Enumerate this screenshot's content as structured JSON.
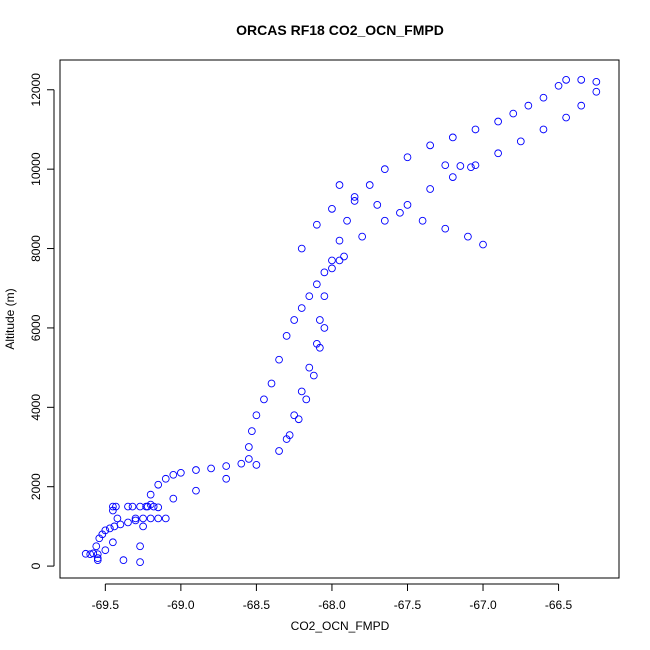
{
  "chart_data": {
    "type": "scatter",
    "title": "ORCAS RF18 CO2_OCN_FMPD",
    "xlabel": "CO2_OCN_FMPD",
    "ylabel": "Altitude (m)",
    "xlim": [
      -69.8,
      -66.1
    ],
    "ylim": [
      -300,
      12750
    ],
    "x_ticks": [
      -69.5,
      -69.0,
      -68.5,
      -68.0,
      -67.5,
      -67.0,
      -66.5
    ],
    "x_tick_labels": [
      "-69.5",
      "-69.0",
      "-68.5",
      "-68.0",
      "-67.5",
      "-67.0",
      "-66.5"
    ],
    "y_ticks": [
      0,
      2000,
      4000,
      6000,
      8000,
      10000,
      12000
    ],
    "y_tick_labels": [
      "0",
      "2000",
      "4000",
      "6000",
      "8000",
      "10000",
      "12000"
    ],
    "marker": "open-circle",
    "color": "#0000ff",
    "grid": false,
    "legend": "none",
    "series": [
      {
        "points": [
          [
            -69.63,
            310
          ],
          [
            -69.6,
            300
          ],
          [
            -69.58,
            320
          ],
          [
            -69.56,
            500
          ],
          [
            -69.54,
            700
          ],
          [
            -69.52,
            800
          ],
          [
            -69.5,
            900
          ],
          [
            -69.47,
            950
          ],
          [
            -69.44,
            1000
          ],
          [
            -69.4,
            1050
          ],
          [
            -69.35,
            1100
          ],
          [
            -69.3,
            1150
          ],
          [
            -69.25,
            1200
          ],
          [
            -69.2,
            1200
          ],
          [
            -69.15,
            1200
          ],
          [
            -69.1,
            1200
          ],
          [
            -69.27,
            1500
          ],
          [
            -69.22,
            1500
          ],
          [
            -69.18,
            1500
          ],
          [
            -69.15,
            1480
          ],
          [
            -69.55,
            300
          ],
          [
            -69.55,
            200
          ],
          [
            -69.55,
            150
          ],
          [
            -69.5,
            400
          ],
          [
            -69.45,
            600
          ],
          [
            -69.45,
            1400
          ],
          [
            -69.45,
            1500
          ],
          [
            -69.43,
            1500
          ],
          [
            -69.42,
            1200
          ],
          [
            -69.38,
            150
          ],
          [
            -69.35,
            1500
          ],
          [
            -69.32,
            1500
          ],
          [
            -69.3,
            1200
          ],
          [
            -69.27,
            100
          ],
          [
            -69.27,
            500
          ],
          [
            -69.25,
            1000
          ],
          [
            -69.23,
            1500
          ],
          [
            -69.2,
            1800
          ],
          [
            -69.15,
            2050
          ],
          [
            -69.1,
            2200
          ],
          [
            -69.05,
            2300
          ],
          [
            -69.0,
            2350
          ],
          [
            -68.9,
            2420
          ],
          [
            -68.8,
            2460
          ],
          [
            -68.7,
            2520
          ],
          [
            -68.6,
            2580
          ],
          [
            -68.55,
            2700
          ],
          [
            -68.55,
            3000
          ],
          [
            -68.53,
            3400
          ],
          [
            -68.5,
            3800
          ],
          [
            -68.45,
            4200
          ],
          [
            -68.4,
            4600
          ],
          [
            -68.35,
            5200
          ],
          [
            -68.3,
            5800
          ],
          [
            -68.25,
            6200
          ],
          [
            -68.2,
            6500
          ],
          [
            -68.15,
            6800
          ],
          [
            -68.1,
            7100
          ],
          [
            -68.05,
            7400
          ],
          [
            -68.0,
            7700
          ],
          [
            -67.95,
            8200
          ],
          [
            -67.9,
            8700
          ],
          [
            -67.85,
            9200
          ],
          [
            -67.75,
            9600
          ],
          [
            -67.65,
            10000
          ],
          [
            -67.5,
            10300
          ],
          [
            -67.35,
            10600
          ],
          [
            -67.2,
            10800
          ],
          [
            -67.05,
            11000
          ],
          [
            -66.9,
            11200
          ],
          [
            -66.8,
            11400
          ],
          [
            -66.7,
            11600
          ],
          [
            -66.6,
            11800
          ],
          [
            -66.5,
            12100
          ],
          [
            -66.45,
            12250
          ],
          [
            -66.35,
            12250
          ],
          [
            -66.25,
            12200
          ],
          [
            -66.25,
            11950
          ],
          [
            -66.35,
            11600
          ],
          [
            -66.45,
            11300
          ],
          [
            -66.6,
            11000
          ],
          [
            -66.75,
            10700
          ],
          [
            -66.9,
            10400
          ],
          [
            -67.05,
            10100
          ],
          [
            -67.2,
            9800
          ],
          [
            -67.35,
            9500
          ],
          [
            -67.5,
            9100
          ],
          [
            -67.65,
            8700
          ],
          [
            -67.8,
            8300
          ],
          [
            -67.92,
            7800
          ],
          [
            -67.95,
            7700
          ],
          [
            -68.0,
            7500
          ],
          [
            -68.05,
            6800
          ],
          [
            -68.08,
            6200
          ],
          [
            -68.1,
            5600
          ],
          [
            -68.15,
            5000
          ],
          [
            -68.2,
            4400
          ],
          [
            -68.25,
            3800
          ],
          [
            -68.3,
            3200
          ],
          [
            -68.35,
            2900
          ],
          [
            -68.5,
            2550
          ],
          [
            -68.7,
            2200
          ],
          [
            -68.9,
            1900
          ],
          [
            -69.05,
            1700
          ],
          [
            -69.2,
            1550
          ],
          [
            -67.25,
            10100
          ],
          [
            -67.15,
            10080
          ],
          [
            -67.08,
            10050
          ],
          [
            -67.95,
            9600
          ],
          [
            -67.85,
            9300
          ],
          [
            -67.7,
            9100
          ],
          [
            -67.55,
            8900
          ],
          [
            -67.4,
            8700
          ],
          [
            -67.25,
            8500
          ],
          [
            -67.1,
            8300
          ],
          [
            -67.0,
            8100
          ],
          [
            -68.0,
            9000
          ],
          [
            -68.1,
            8600
          ],
          [
            -68.2,
            8000
          ],
          [
            -68.05,
            6000
          ],
          [
            -68.08,
            5500
          ],
          [
            -68.12,
            4800
          ],
          [
            -68.17,
            4200
          ],
          [
            -68.22,
            3700
          ],
          [
            -68.28,
            3300
          ]
        ]
      }
    ]
  }
}
